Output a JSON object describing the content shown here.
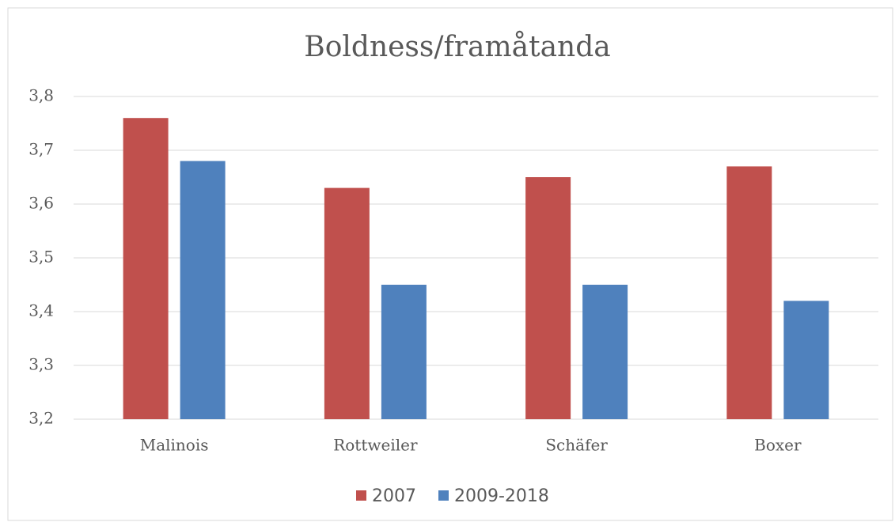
{
  "chart_data": {
    "type": "bar",
    "title": "Boldness/framåtanda",
    "categories": [
      "Malinois",
      "Rottweiler",
      "Schäfer",
      "Boxer"
    ],
    "series": [
      {
        "name": "2007",
        "color": "#c0504d",
        "values": [
          3.76,
          3.63,
          3.65,
          3.67
        ]
      },
      {
        "name": "2009-2018",
        "color": "#4f81bd",
        "values": [
          3.68,
          3.45,
          3.45,
          3.42
        ]
      }
    ],
    "ylim": [
      3.2,
      3.8
    ],
    "yticks": [
      {
        "value": 3.2,
        "label": "3,2"
      },
      {
        "value": 3.3,
        "label": "3,3"
      },
      {
        "value": 3.4,
        "label": "3,4"
      },
      {
        "value": 3.5,
        "label": "3,5"
      },
      {
        "value": 3.6,
        "label": "3,6"
      },
      {
        "value": 3.7,
        "label": "3,7"
      },
      {
        "value": 3.8,
        "label": "3,8"
      }
    ],
    "grid": true,
    "legend": "bottom"
  }
}
